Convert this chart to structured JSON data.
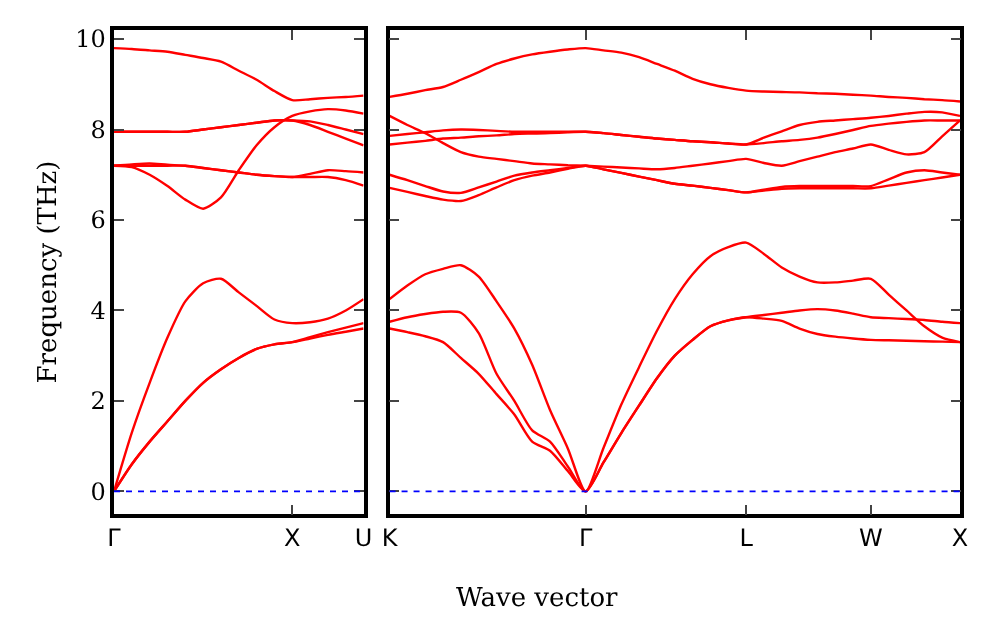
{
  "chart_data": [
    {
      "type": "line",
      "ylabel": "Frequency (THz)",
      "ylim": [
        -0.5,
        10.2
      ],
      "categories": [
        "Γ",
        null,
        null,
        null,
        null,
        null,
        null,
        null,
        null,
        null,
        "X",
        null,
        null,
        null,
        "U"
      ],
      "yticks": [
        0,
        2,
        4,
        6,
        8,
        10
      ],
      "marker": "none",
      "line_style": "solid",
      "ref_lines": [
        {
          "axis": "y",
          "value": 0,
          "color": "#0000ff",
          "line_style": "dotted"
        }
      ],
      "series": [
        {
          "color": "#ff0000",
          "values": [
            0,
            0.6,
            1.1,
            1.55,
            2.0,
            2.4,
            2.7,
            2.95,
            3.15,
            3.25,
            3.3,
            3.38,
            3.46,
            3.53,
            3.6
          ]
        },
        {
          "color": "#ff0000",
          "values": [
            0,
            0.6,
            1.1,
            1.55,
            2.0,
            2.4,
            2.7,
            2.95,
            3.15,
            3.25,
            3.3,
            3.41,
            3.52,
            3.62,
            3.72
          ]
        },
        {
          "color": "#ff0000",
          "values": [
            0,
            1.3,
            2.4,
            3.4,
            4.2,
            4.6,
            4.7,
            4.4,
            4.1,
            3.8,
            3.72,
            3.74,
            3.82,
            4.0,
            4.25
          ]
        },
        {
          "color": "#ff0000",
          "values": [
            7.2,
            7.2,
            7.2,
            7.2,
            7.2,
            7.15,
            7.1,
            7.05,
            7.0,
            6.97,
            6.95,
            6.95,
            6.95,
            6.88,
            6.76
          ]
        },
        {
          "color": "#ff0000",
          "values": [
            7.2,
            7.23,
            7.25,
            7.22,
            7.2,
            7.15,
            7.1,
            7.05,
            7.0,
            6.97,
            6.95,
            7.02,
            7.1,
            7.08,
            7.05
          ]
        },
        {
          "color": "#ff0000",
          "values": [
            7.2,
            7.17,
            7.0,
            6.75,
            6.45,
            6.25,
            6.5,
            7.1,
            7.65,
            8.05,
            8.3,
            8.4,
            8.45,
            8.42,
            8.35
          ]
        },
        {
          "color": "#ff0000",
          "values": [
            7.95,
            7.95,
            7.95,
            7.95,
            7.95,
            8.0,
            8.05,
            8.1,
            8.15,
            8.2,
            8.2,
            8.1,
            7.95,
            7.8,
            7.65
          ]
        },
        {
          "color": "#ff0000",
          "values": [
            7.95,
            7.95,
            7.95,
            7.95,
            7.95,
            8.0,
            8.05,
            8.1,
            8.15,
            8.2,
            8.2,
            8.18,
            8.1,
            8.0,
            7.9
          ]
        },
        {
          "color": "#ff0000",
          "values": [
            9.8,
            9.78,
            9.75,
            9.72,
            9.65,
            9.58,
            9.5,
            9.3,
            9.1,
            8.85,
            8.65,
            8.67,
            8.7,
            8.72,
            8.75
          ]
        }
      ]
    },
    {
      "type": "line",
      "xlabel": "Wave vector",
      "ylim": [
        -0.5,
        10.2
      ],
      "tick_labels": "x",
      "categories": [
        "K",
        null,
        null,
        null,
        null,
        null,
        null,
        null,
        null,
        null,
        null,
        "Γ",
        null,
        null,
        null,
        null,
        null,
        null,
        null,
        null,
        "L",
        null,
        null,
        null,
        null,
        null,
        null,
        "W",
        null,
        null,
        null,
        null,
        "X"
      ],
      "yticks": [
        {
          "value": 0,
          "label": null
        },
        {
          "value": 2,
          "label": null
        },
        {
          "value": 4,
          "label": null
        },
        {
          "value": 6,
          "label": null
        },
        {
          "value": 8,
          "label": null
        },
        {
          "value": 10,
          "label": null
        }
      ],
      "marker": "none",
      "line_style": "solid",
      "ref_lines": [
        {
          "axis": "y",
          "value": 0,
          "color": "#0000ff",
          "line_style": "dotted"
        }
      ],
      "series": [
        {
          "color": "#ff0000",
          "values": [
            3.6,
            3.52,
            3.43,
            3.3,
            2.95,
            2.6,
            2.15,
            1.7,
            1.1,
            0.9,
            0.45,
            0,
            0.64,
            1.29,
            1.9,
            2.5,
            3.0,
            3.35,
            3.65,
            3.78,
            3.85,
            3.82,
            3.77,
            3.6,
            3.48,
            3.42,
            3.38,
            3.35,
            3.34,
            3.33,
            3.32,
            3.31,
            3.3
          ]
        },
        {
          "color": "#ff0000",
          "values": [
            3.75,
            3.85,
            3.92,
            3.97,
            3.95,
            3.5,
            2.6,
            2.0,
            1.35,
            1.1,
            0.55,
            0,
            0.64,
            1.29,
            1.9,
            2.5,
            3.0,
            3.35,
            3.65,
            3.78,
            3.85,
            3.9,
            3.95,
            4.0,
            4.03,
            4.0,
            3.93,
            3.85,
            3.83,
            3.81,
            3.79,
            3.75,
            3.72
          ]
        },
        {
          "color": "#ff0000",
          "values": [
            4.25,
            4.55,
            4.8,
            4.92,
            5.0,
            4.75,
            4.2,
            3.6,
            2.8,
            1.8,
            0.95,
            0,
            0.96,
            1.92,
            2.75,
            3.55,
            4.25,
            4.8,
            5.2,
            5.4,
            5.5,
            5.25,
            4.95,
            4.75,
            4.62,
            4.62,
            4.66,
            4.7,
            4.35,
            4.0,
            3.65,
            3.4,
            3.3
          ]
        },
        {
          "color": "#ff0000",
          "values": [
            6.71,
            6.62,
            6.53,
            6.45,
            6.42,
            6.55,
            6.72,
            6.88,
            6.98,
            7.05,
            7.13,
            7.2,
            7.12,
            7.04,
            6.96,
            6.88,
            6.8,
            6.76,
            6.71,
            6.66,
            6.61,
            6.65,
            6.69,
            6.7,
            6.7,
            6.7,
            6.7,
            6.7,
            6.76,
            6.82,
            6.88,
            6.94,
            7.0
          ]
        },
        {
          "color": "#ff0000",
          "values": [
            7.0,
            6.88,
            6.75,
            6.63,
            6.6,
            6.72,
            6.85,
            6.98,
            7.05,
            7.1,
            7.15,
            7.2,
            7.12,
            7.04,
            6.96,
            6.88,
            6.8,
            6.76,
            6.71,
            6.66,
            6.61,
            6.67,
            6.73,
            6.75,
            6.75,
            6.75,
            6.75,
            6.75,
            6.9,
            7.05,
            7.1,
            7.05,
            7.0
          ]
        },
        {
          "color": "#ff0000",
          "values": [
            8.3,
            8.1,
            7.92,
            7.7,
            7.5,
            7.4,
            7.35,
            7.3,
            7.25,
            7.23,
            7.21,
            7.2,
            7.18,
            7.16,
            7.14,
            7.12,
            7.15,
            7.2,
            7.25,
            7.3,
            7.35,
            7.26,
            7.2,
            7.3,
            7.4,
            7.5,
            7.58,
            7.67,
            7.55,
            7.45,
            7.5,
            7.85,
            8.2
          ]
        },
        {
          "color": "#ff0000",
          "values": [
            7.67,
            7.71,
            7.75,
            7.8,
            7.82,
            7.85,
            7.87,
            7.9,
            7.91,
            7.92,
            7.94,
            7.95,
            7.92,
            7.88,
            7.84,
            7.8,
            7.77,
            7.74,
            7.72,
            7.69,
            7.67,
            7.7,
            7.74,
            7.77,
            7.82,
            7.9,
            7.99,
            8.08,
            8.13,
            8.17,
            8.2,
            8.2,
            8.2
          ]
        },
        {
          "color": "#ff0000",
          "values": [
            7.86,
            7.9,
            7.94,
            7.98,
            8.0,
            7.99,
            7.97,
            7.95,
            7.95,
            7.95,
            7.95,
            7.95,
            7.92,
            7.88,
            7.84,
            7.8,
            7.77,
            7.74,
            7.72,
            7.69,
            7.67,
            7.82,
            7.96,
            8.1,
            8.17,
            8.2,
            8.23,
            8.26,
            8.3,
            8.35,
            8.39,
            8.38,
            8.3
          ]
        },
        {
          "color": "#ff0000",
          "values": [
            8.72,
            8.79,
            8.87,
            8.94,
            9.1,
            9.27,
            9.45,
            9.57,
            9.66,
            9.72,
            9.77,
            9.8,
            9.75,
            9.7,
            9.6,
            9.45,
            9.3,
            9.12,
            9.0,
            8.92,
            8.86,
            8.84,
            8.83,
            8.82,
            8.8,
            8.79,
            8.77,
            8.75,
            8.72,
            8.7,
            8.67,
            8.65,
            8.62
          ]
        }
      ]
    }
  ]
}
